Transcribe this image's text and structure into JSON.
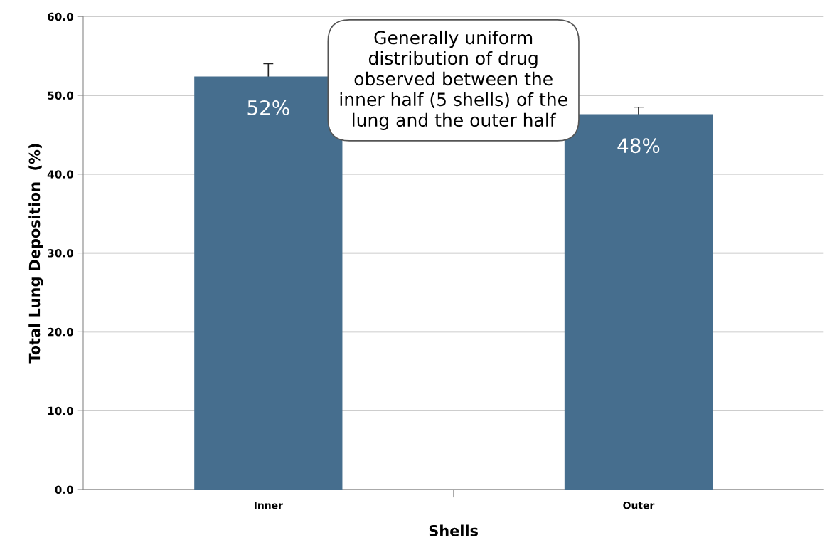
{
  "chart_data": {
    "type": "bar",
    "xlabel": "Shells",
    "ylabel": "Total Lung Deposition  (%)",
    "categories": [
      "Inner",
      "Outer"
    ],
    "values": [
      52.4,
      47.6
    ],
    "errors": [
      1.6,
      0.9
    ],
    "color": "#466e8e",
    "value_labels": [
      "52%",
      "48%"
    ],
    "ylim": [
      0,
      60
    ],
    "yticks": [
      {
        "value": 0,
        "label": "0.0"
      },
      {
        "value": 10,
        "label": "10.0"
      },
      {
        "value": 20,
        "label": "20.0"
      },
      {
        "value": 30,
        "label": "30.0"
      },
      {
        "value": 40,
        "label": "40.0"
      },
      {
        "value": 50,
        "label": "50.0"
      },
      {
        "value": 60,
        "label": "60.0"
      }
    ],
    "grid": "y",
    "annotations": [
      "Generally uniform\ndistribution of drug\nobserved between the\ninner half (5 shells) of the\nlung and the outer half"
    ]
  }
}
